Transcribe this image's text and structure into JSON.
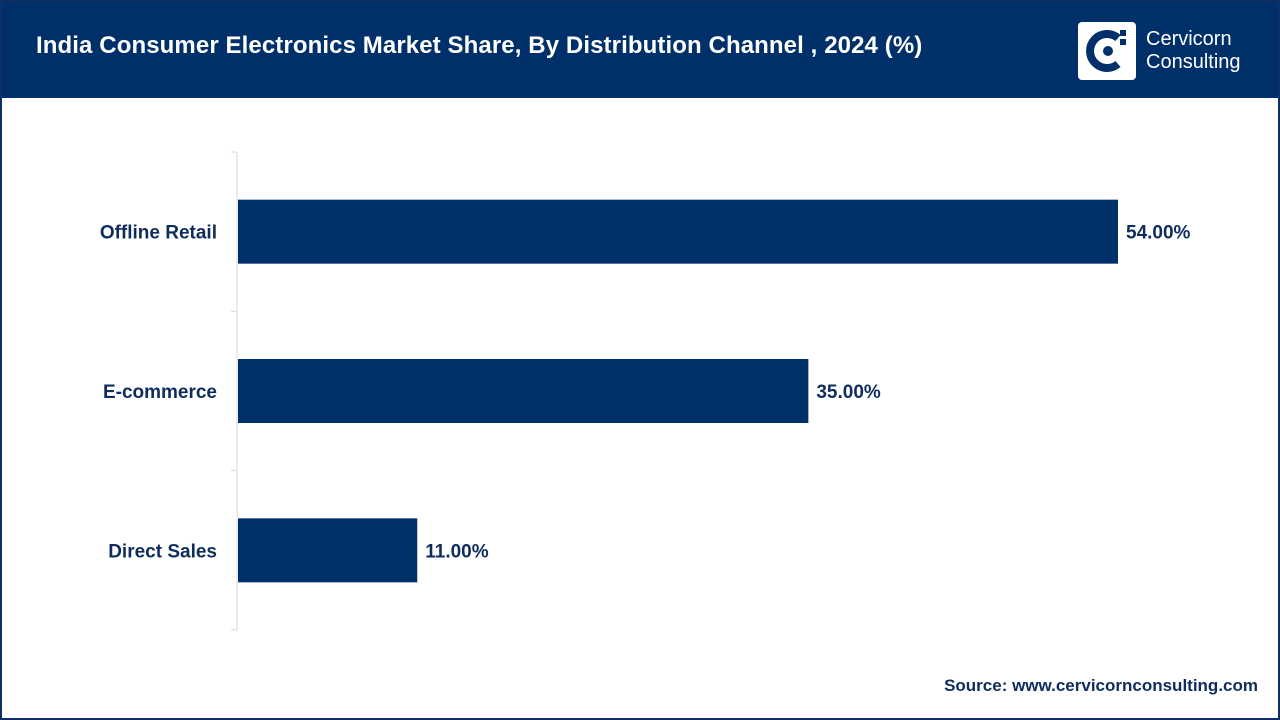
{
  "header": {
    "title": "India Consumer Electronics Market Share, By Distribution Channel , 2024 (%)",
    "background_color": "#003069"
  },
  "logo": {
    "line1": "Cervicorn",
    "line2": "Consulting",
    "icon": "cervicorn-logo-icon"
  },
  "chart_data": {
    "type": "bar",
    "orientation": "horizontal",
    "title": "India Consumer Electronics Market Share, By Distribution Channel , 2024 (%)",
    "categories": [
      "Offline Retail",
      "E-commerce",
      "Direct Sales"
    ],
    "values": [
      54.0,
      35.0,
      11.0
    ],
    "value_labels": [
      "54.00%",
      "35.00%",
      "11.00%"
    ],
    "unit": "%",
    "xlim": [
      0,
      60
    ],
    "grid": false,
    "legend": "none",
    "bar_color": "#003069"
  },
  "source": {
    "text": "Source: www.cervicornconsulting.com"
  }
}
